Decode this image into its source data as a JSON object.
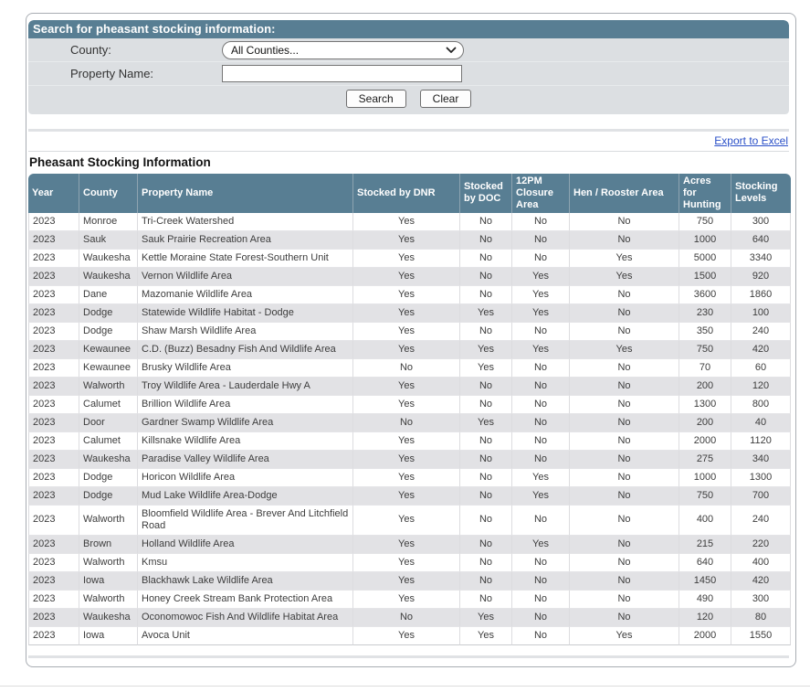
{
  "colors": {
    "header_bg": "#587e93",
    "alt_row_bg": "#e2e2e5",
    "separator_strip": "#e0e2e5",
    "link_blue": "#2b50c8"
  },
  "search_panel": {
    "title": "Search for pheasant stocking information:",
    "county_label": "County:",
    "county_value": "All Counties...",
    "property_label": "Property Name:",
    "property_value": "",
    "search_button": "Search",
    "clear_button": "Clear"
  },
  "export_link": "Export to Excel",
  "results": {
    "heading": "Pheasant Stocking Information",
    "columns": [
      "Year",
      "County",
      "Property Name",
      "Stocked by DNR",
      "Stocked by DOC",
      "12PM Closure Area",
      "Hen / Rooster Area",
      "Acres for Hunting",
      "Stocking Levels"
    ],
    "rows": [
      [
        "2023",
        "Monroe",
        "Tri-Creek Watershed",
        "Yes",
        "No",
        "No",
        "No",
        "750",
        "300"
      ],
      [
        "2023",
        "Sauk",
        "Sauk Prairie Recreation Area",
        "Yes",
        "No",
        "No",
        "No",
        "1000",
        "640"
      ],
      [
        "2023",
        "Waukesha",
        "Kettle Moraine State Forest-Southern Unit",
        "Yes",
        "No",
        "No",
        "Yes",
        "5000",
        "3340"
      ],
      [
        "2023",
        "Waukesha",
        "Vernon Wildlife Area",
        "Yes",
        "No",
        "Yes",
        "Yes",
        "1500",
        "920"
      ],
      [
        "2023",
        "Dane",
        "Mazomanie Wildlife Area",
        "Yes",
        "No",
        "Yes",
        "No",
        "3600",
        "1860"
      ],
      [
        "2023",
        "Dodge",
        "Statewide Wildlife Habitat - Dodge",
        "Yes",
        "Yes",
        "Yes",
        "No",
        "230",
        "100"
      ],
      [
        "2023",
        "Dodge",
        "Shaw Marsh Wildlife Area",
        "Yes",
        "No",
        "No",
        "No",
        "350",
        "240"
      ],
      [
        "2023",
        "Kewaunee",
        "C.D. (Buzz) Besadny Fish And Wildlife Area",
        "Yes",
        "Yes",
        "Yes",
        "Yes",
        "750",
        "420"
      ],
      [
        "2023",
        "Kewaunee",
        "Brusky Wildlife Area",
        "No",
        "Yes",
        "No",
        "No",
        "70",
        "60"
      ],
      [
        "2023",
        "Walworth",
        "Troy Wildlife Area - Lauderdale Hwy A",
        "Yes",
        "No",
        "No",
        "No",
        "200",
        "120"
      ],
      [
        "2023",
        "Calumet",
        "Brillion Wildlife Area",
        "Yes",
        "No",
        "No",
        "No",
        "1300",
        "800"
      ],
      [
        "2023",
        "Door",
        "Gardner Swamp Wildlife Area",
        "No",
        "Yes",
        "No",
        "No",
        "200",
        "40"
      ],
      [
        "2023",
        "Calumet",
        "Killsnake Wildlife Area",
        "Yes",
        "No",
        "No",
        "No",
        "2000",
        "1120"
      ],
      [
        "2023",
        "Waukesha",
        "Paradise Valley Wildlife Area",
        "Yes",
        "No",
        "No",
        "No",
        "275",
        "340"
      ],
      [
        "2023",
        "Dodge",
        "Horicon Wildlife Area",
        "Yes",
        "No",
        "Yes",
        "No",
        "1000",
        "1300"
      ],
      [
        "2023",
        "Dodge",
        "Mud Lake Wildlife Area-Dodge",
        "Yes",
        "No",
        "Yes",
        "No",
        "750",
        "700"
      ],
      [
        "2023",
        "Walworth",
        "Bloomfield Wildlife Area - Brever And Litchfield Road",
        "Yes",
        "No",
        "No",
        "No",
        "400",
        "240"
      ],
      [
        "2023",
        "Brown",
        "Holland Wildlife Area",
        "Yes",
        "No",
        "Yes",
        "No",
        "215",
        "220"
      ],
      [
        "2023",
        "Walworth",
        "Kmsu",
        "Yes",
        "No",
        "No",
        "No",
        "640",
        "400"
      ],
      [
        "2023",
        "Iowa",
        "Blackhawk Lake Wildlife Area",
        "Yes",
        "No",
        "No",
        "No",
        "1450",
        "420"
      ],
      [
        "2023",
        "Walworth",
        "Honey Creek Stream Bank Protection Area",
        "Yes",
        "No",
        "No",
        "No",
        "490",
        "300"
      ],
      [
        "2023",
        "Waukesha",
        "Oconomowoc Fish And Wildlife Habitat Area",
        "No",
        "Yes",
        "No",
        "No",
        "120",
        "80"
      ],
      [
        "2023",
        "Iowa",
        "Avoca Unit",
        "Yes",
        "Yes",
        "No",
        "Yes",
        "2000",
        "1550"
      ]
    ]
  }
}
